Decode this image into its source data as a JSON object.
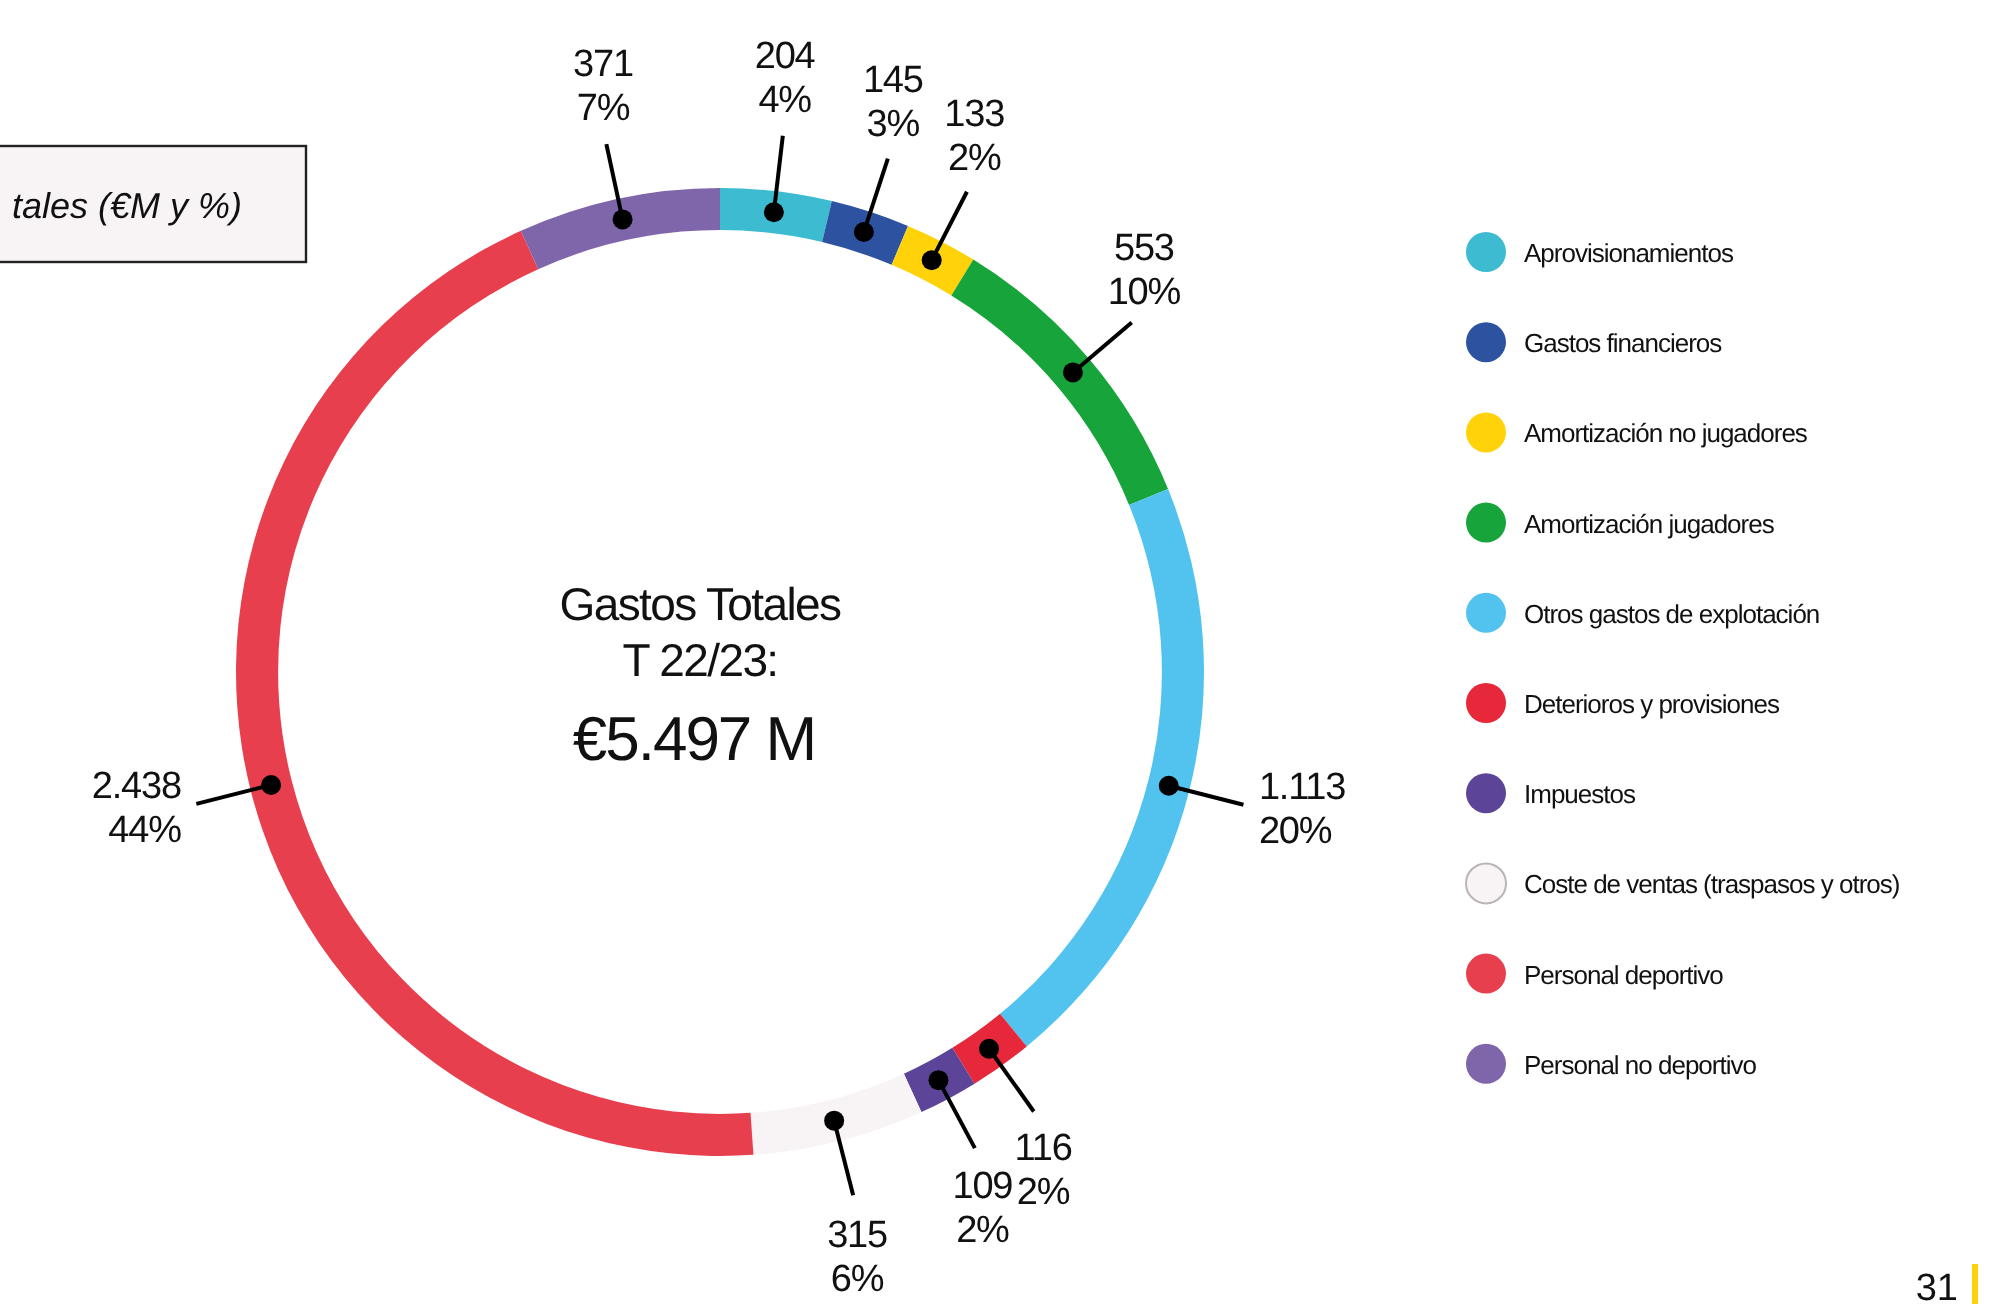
{
  "chart_data": {
    "type": "donut",
    "title": "tales (€M y %)",
    "categories": [
      "Aprovisionamientos",
      "Gastos financieros",
      "Amortización no jugadores",
      "Amortización jugadores",
      "Otros gastos de explotación",
      "Deterioros y provisiones",
      "Impuestos",
      "Coste de ventas (traspasos y otros)",
      "Personal deportivo",
      "Personal no deportivo"
    ],
    "values": [
      204,
      145,
      133,
      553,
      1113,
      116,
      109,
      315,
      2438,
      371
    ],
    "colors": [
      "#3dbbd1",
      "#2c52a0",
      "#ffd20a",
      "#17a43a",
      "#52c3ef",
      "#e7283a",
      "#5c4499",
      "#f8f3f5",
      "#e83f4f",
      "#7f66ab"
    ],
    "value_labels": [
      "204\n4%",
      "145\n3%",
      "133\n2%",
      "553\n10%",
      "1.113\n20%",
      "116\n2%",
      "109\n2%",
      "315\n6%",
      "2.438\n44%",
      "371\n7%"
    ],
    "annotations": [
      "Gastos Totales\nT 22/23:",
      "€5.497 M",
      "31"
    ],
    "legend": "right"
  }
}
